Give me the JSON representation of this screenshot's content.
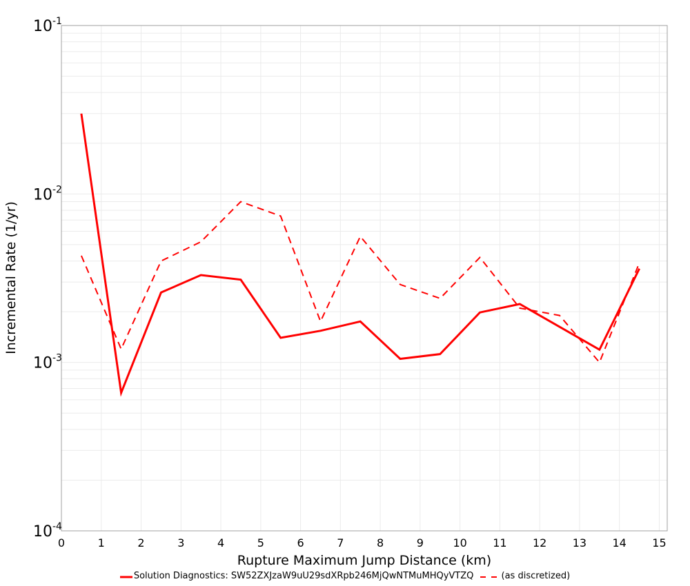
{
  "chart_data": {
    "type": "line",
    "title": "",
    "xlabel": "Rupture Maximum Jump Distance (km)",
    "ylabel": "Incremental Rate (1/yr)",
    "xlim": [
      0,
      15.2
    ],
    "ylim": [
      0.0001,
      0.1
    ],
    "yscale": "log",
    "grid": true,
    "legend_position": "bottom",
    "x_ticks": [
      "0",
      "1",
      "2",
      "3",
      "4",
      "5",
      "6",
      "7",
      "8",
      "9",
      "10",
      "11",
      "12",
      "13",
      "14",
      "15"
    ],
    "y_ticks": [
      {
        "base": "10",
        "exp": "-1",
        "value": 0.1
      },
      {
        "base": "10",
        "exp": "-2",
        "value": 0.01
      },
      {
        "base": "10",
        "exp": "-3",
        "value": 0.001
      },
      {
        "base": "10",
        "exp": "-4",
        "value": 0.0001
      }
    ],
    "x": [
      0.5,
      1.5,
      2.5,
      3.5,
      4.5,
      5.5,
      6.5,
      7.5,
      8.5,
      9.5,
      10.5,
      11.5,
      12.5,
      13.5,
      14.5
    ],
    "series": [
      {
        "name": "Solution Diagnostics: SW52ZXJzaW9uU29sdXRpb246MjQwNTMuMHQyVTZQ",
        "style": "solid",
        "color": "#ff0000",
        "x": [
          0.5,
          1.5,
          2.5,
          3.5,
          4.5,
          5.5,
          6.5,
          7.5,
          8.5,
          9.5,
          10.5,
          11.5,
          13.5,
          14.5
        ],
        "values": [
          0.03,
          0.00066,
          0.0026,
          0.0033,
          0.0031,
          0.0014,
          0.00154,
          0.00175,
          0.00105,
          0.00112,
          0.00198,
          0.00222,
          0.00119,
          0.0036
        ]
      },
      {
        "name": "(as discretized)",
        "style": "dashed",
        "color": "#ff0000",
        "x": [
          0.5,
          1.5,
          2.5,
          3.5,
          4.5,
          5.5,
          6.5,
          7.5,
          8.5,
          9.5,
          10.5,
          11.5,
          12.5,
          13.5,
          14.5
        ],
        "values": [
          0.0043,
          0.0012,
          0.004,
          0.0052,
          0.009,
          0.0074,
          0.00175,
          0.0056,
          0.0029,
          0.0024,
          0.0042,
          0.0021,
          0.0019,
          0.001,
          0.0039
        ]
      }
    ]
  },
  "legend": {
    "items": [
      {
        "label": "Solution Diagnostics: SW52ZXJzaW9uU29sdXRpb246MjQwNTMuMHQyVTZQ",
        "style": "solid",
        "color": "#ff0000"
      },
      {
        "label": "(as discretized)",
        "style": "dashed",
        "color": "#ff0000"
      }
    ]
  },
  "colors": {
    "frame": "#a0a0a0",
    "grid": "#ebebeb",
    "series": "#ff0000"
  }
}
